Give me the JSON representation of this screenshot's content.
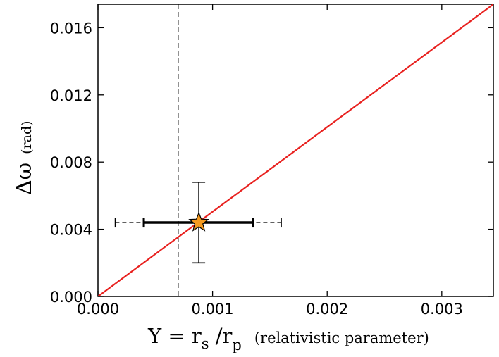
{
  "chart_data": {
    "type": "scatter",
    "x_ticks": [
      "0.000",
      "0.001",
      "0.002",
      "0.003"
    ],
    "x_tick_values": [
      0.0,
      0.001,
      0.002,
      0.003
    ],
    "y_ticks": [
      "0.000",
      "0.004",
      "0.008",
      "0.012",
      "0.016"
    ],
    "y_tick_values": [
      0.0,
      0.004,
      0.008,
      0.012,
      0.016
    ],
    "xlim": [
      0.0,
      0.00345
    ],
    "ylim": [
      0.0,
      0.0174
    ],
    "ylabel": {
      "symbol": "Δω",
      "unit": "(rad)"
    },
    "xlabel": {
      "main": "Y = r",
      "sub1": "s",
      "slash": " /r",
      "sub2": "p",
      "desc": "(relativistic parameter)"
    },
    "line": {
      "x": [
        0.0,
        0.00345
      ],
      "y": [
        0.0,
        0.0174
      ],
      "color": "#e8211f"
    },
    "vline": {
      "x": 0.0007,
      "style": "dashed"
    },
    "point": {
      "x": 0.00088,
      "y": 0.0044,
      "xerr_solid": [
        0.0004,
        0.00135
      ],
      "xerr_dashed": [
        0.00015,
        0.0016
      ],
      "yerr": [
        0.002,
        0.0068
      ],
      "marker": "star",
      "color": "#f59a1f"
    },
    "grid": false
  }
}
